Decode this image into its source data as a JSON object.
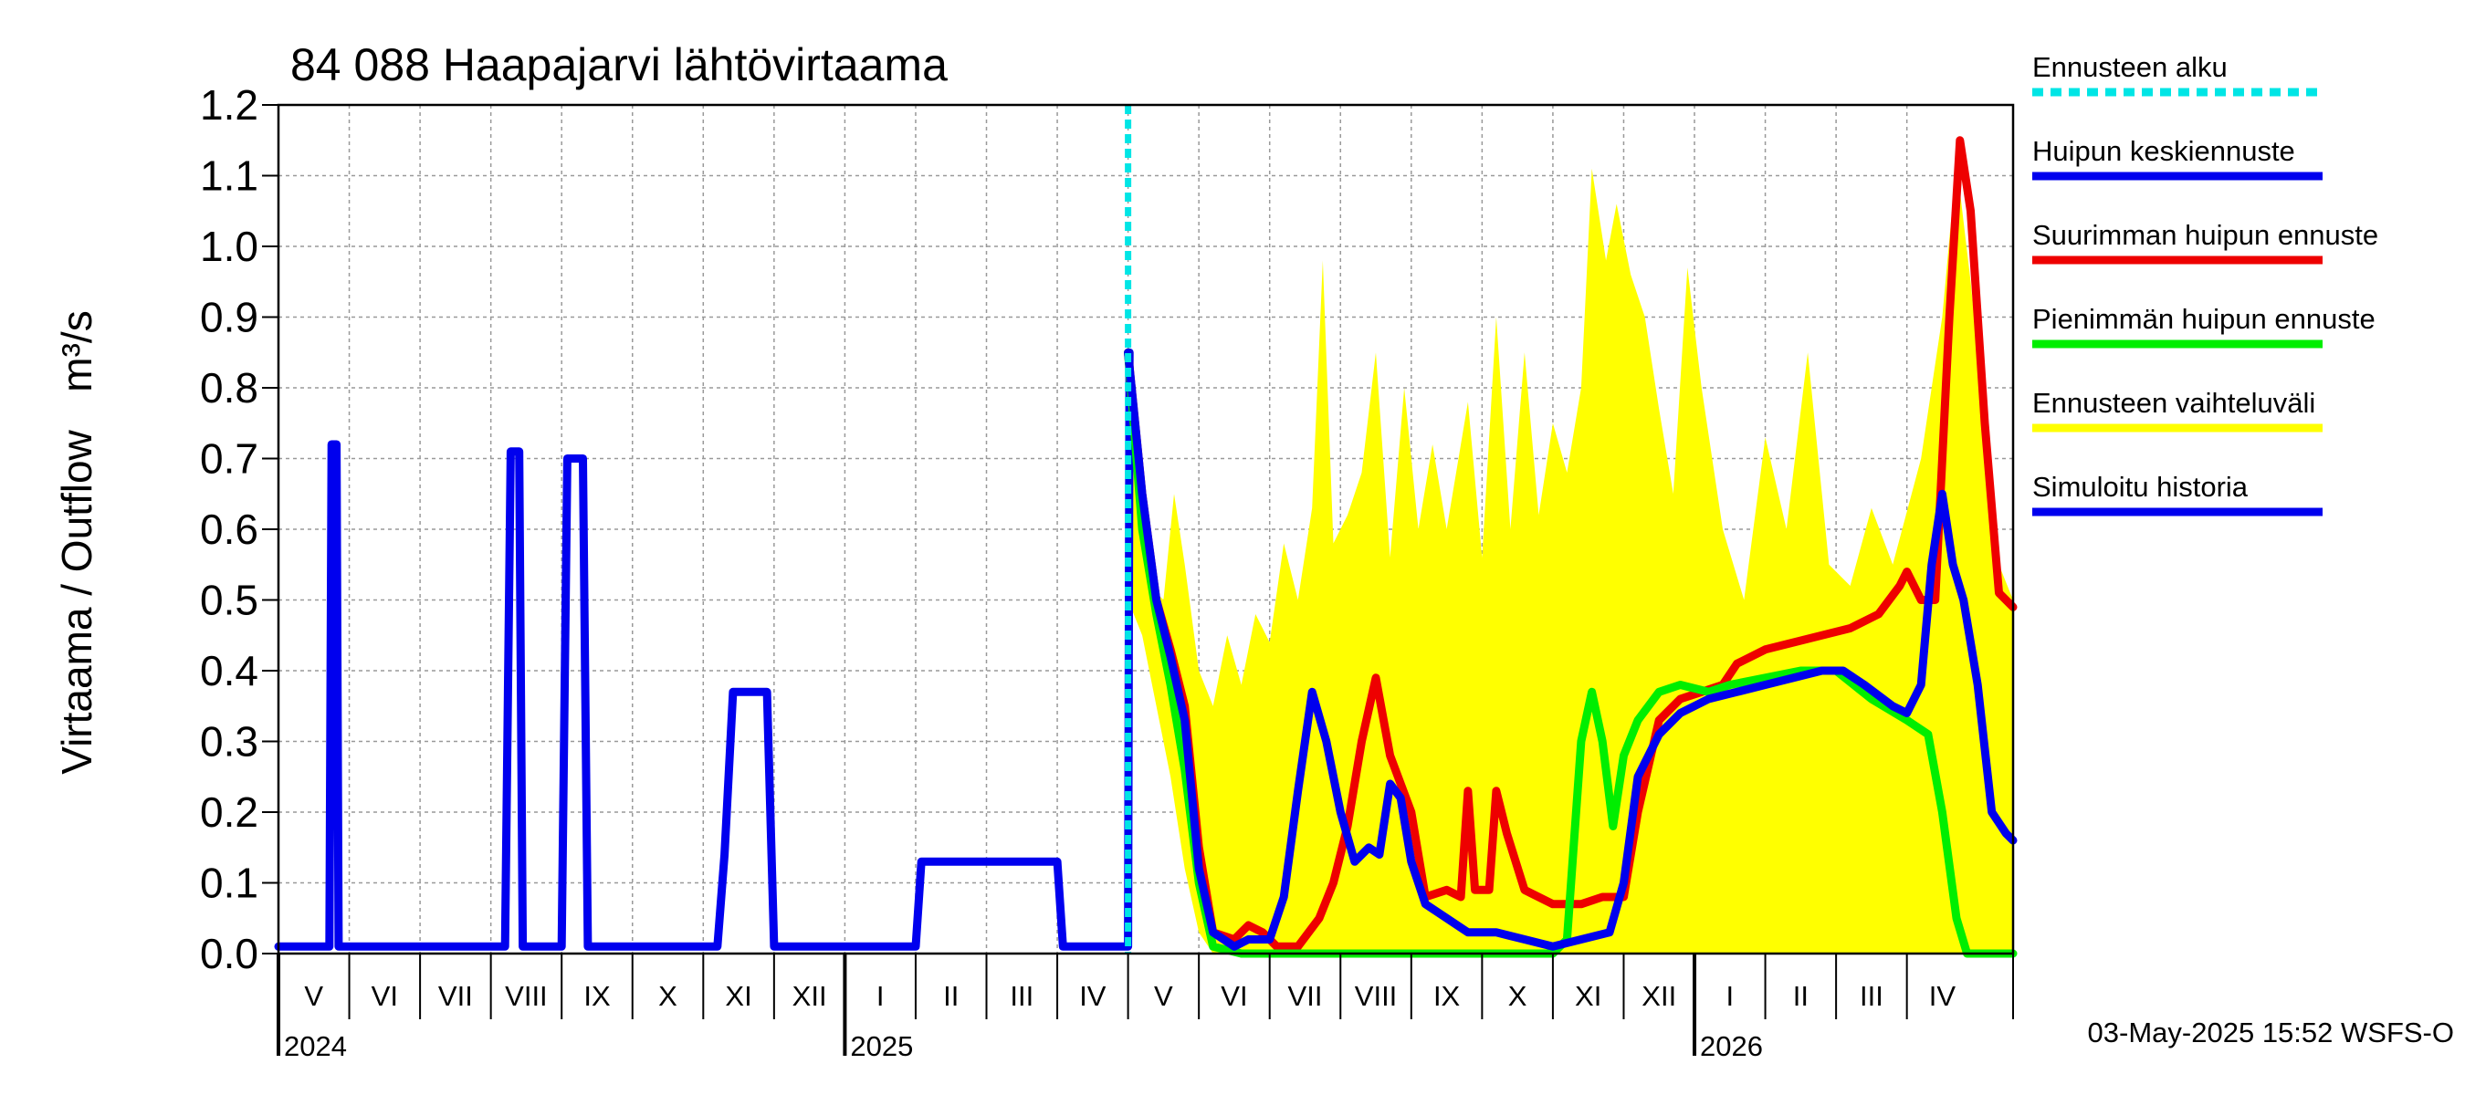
{
  "chart_data": {
    "type": "line",
    "title": "84 088 Haapajarvi lähtövirtaama",
    "ylabel_fi": "Virtaama / Outflow",
    "yunit": "m³/s",
    "ylim": [
      0.0,
      1.2
    ],
    "yticks": [
      "0.0",
      "0.1",
      "0.2",
      "0.3",
      "0.4",
      "0.5",
      "0.6",
      "0.7",
      "0.8",
      "0.9",
      "1.0",
      "1.1",
      "1.2"
    ],
    "xlim": [
      0,
      24.5
    ],
    "months": [
      {
        "label": "V",
        "x": 0
      },
      {
        "label": "VI",
        "x": 1
      },
      {
        "label": "VII",
        "x": 2
      },
      {
        "label": "VIII",
        "x": 3
      },
      {
        "label": "IX",
        "x": 4
      },
      {
        "label": "X",
        "x": 5
      },
      {
        "label": "XI",
        "x": 6
      },
      {
        "label": "XII",
        "x": 7
      },
      {
        "label": "I",
        "x": 8
      },
      {
        "label": "II",
        "x": 9
      },
      {
        "label": "III",
        "x": 10
      },
      {
        "label": "IV",
        "x": 11
      },
      {
        "label": "V",
        "x": 12
      },
      {
        "label": "VI",
        "x": 13
      },
      {
        "label": "VII",
        "x": 14
      },
      {
        "label": "VIII",
        "x": 15
      },
      {
        "label": "IX",
        "x": 16
      },
      {
        "label": "X",
        "x": 17
      },
      {
        "label": "XI",
        "x": 18
      },
      {
        "label": "XII",
        "x": 19
      },
      {
        "label": "I",
        "x": 20
      },
      {
        "label": "II",
        "x": 21
      },
      {
        "label": "III",
        "x": 22
      },
      {
        "label": "IV",
        "x": 23
      }
    ],
    "years": [
      {
        "label": "2024",
        "x": 0
      },
      {
        "label": "2025",
        "x": 8
      },
      {
        "label": "2026",
        "x": 20
      }
    ],
    "forecast_start_x": 12.0,
    "footer": "03-May-2025 15:52 WSFS-O",
    "legend": [
      {
        "label": "Ennusteen alku",
        "color": "#00e5e5",
        "style": "dashed"
      },
      {
        "label": "Huipun keskiennuste",
        "color": "#0000ee",
        "style": "solid"
      },
      {
        "label": "Suurimman huipun ennuste",
        "color": "#ee0000",
        "style": "solid"
      },
      {
        "label": "Pienimmän huipun ennuste",
        "color": "#00ee00",
        "style": "solid"
      },
      {
        "label": "Ennusteen vaihteluväli",
        "color": "#ffff00",
        "style": "solid"
      },
      {
        "label": "Simuloitu historia",
        "color": "#0000ee",
        "style": "solid"
      }
    ],
    "band": {
      "name": "Ennusteen vaihteluväli",
      "color": "#ffff00",
      "upper": [
        [
          12.0,
          0.85
        ],
        [
          12.1,
          0.72
        ],
        [
          12.3,
          0.52
        ],
        [
          12.5,
          0.5
        ],
        [
          12.65,
          0.65
        ],
        [
          12.8,
          0.55
        ],
        [
          13.0,
          0.4
        ],
        [
          13.2,
          0.35
        ],
        [
          13.4,
          0.45
        ],
        [
          13.6,
          0.38
        ],
        [
          13.8,
          0.48
        ],
        [
          14.0,
          0.44
        ],
        [
          14.2,
          0.58
        ],
        [
          14.4,
          0.5
        ],
        [
          14.6,
          0.63
        ],
        [
          14.75,
          0.98
        ],
        [
          14.9,
          0.58
        ],
        [
          15.1,
          0.62
        ],
        [
          15.3,
          0.68
        ],
        [
          15.5,
          0.85
        ],
        [
          15.7,
          0.56
        ],
        [
          15.9,
          0.8
        ],
        [
          16.1,
          0.6
        ],
        [
          16.3,
          0.72
        ],
        [
          16.5,
          0.6
        ],
        [
          16.8,
          0.78
        ],
        [
          17.0,
          0.56
        ],
        [
          17.2,
          0.9
        ],
        [
          17.4,
          0.6
        ],
        [
          17.6,
          0.85
        ],
        [
          17.8,
          0.62
        ],
        [
          18.0,
          0.75
        ],
        [
          18.2,
          0.68
        ],
        [
          18.4,
          0.8
        ],
        [
          18.55,
          1.11
        ],
        [
          18.75,
          0.98
        ],
        [
          18.9,
          1.06
        ],
        [
          19.1,
          0.96
        ],
        [
          19.3,
          0.9
        ],
        [
          19.5,
          0.77
        ],
        [
          19.7,
          0.65
        ],
        [
          19.9,
          0.97
        ],
        [
          20.1,
          0.8
        ],
        [
          20.4,
          0.6
        ],
        [
          20.7,
          0.5
        ],
        [
          21.0,
          0.73
        ],
        [
          21.3,
          0.6
        ],
        [
          21.6,
          0.85
        ],
        [
          21.9,
          0.55
        ],
        [
          22.2,
          0.52
        ],
        [
          22.5,
          0.63
        ],
        [
          22.8,
          0.55
        ],
        [
          23.2,
          0.7
        ],
        [
          23.5,
          0.9
        ],
        [
          23.7,
          1.12
        ],
        [
          23.9,
          0.95
        ],
        [
          24.1,
          0.75
        ],
        [
          24.3,
          0.55
        ],
        [
          24.5,
          0.5
        ]
      ],
      "lower": [
        [
          24.5,
          0.0
        ],
        [
          24.0,
          0.0
        ],
        [
          23.5,
          0.0
        ],
        [
          23.0,
          0.0
        ],
        [
          22.0,
          0.0
        ],
        [
          21.0,
          0.0
        ],
        [
          20.0,
          0.0
        ],
        [
          19.0,
          0.0
        ],
        [
          18.0,
          0.0
        ],
        [
          17.0,
          0.0
        ],
        [
          16.0,
          0.0
        ],
        [
          15.0,
          0.0
        ],
        [
          14.0,
          0.0
        ],
        [
          13.2,
          0.0
        ],
        [
          13.0,
          0.03
        ],
        [
          12.8,
          0.12
        ],
        [
          12.6,
          0.25
        ],
        [
          12.4,
          0.35
        ],
        [
          12.2,
          0.45
        ],
        [
          12.0,
          0.5
        ]
      ]
    },
    "series": [
      {
        "name": "Simuloitu historia",
        "color": "#0000ee",
        "values": [
          [
            0.0,
            0.01
          ],
          [
            0.72,
            0.01
          ],
          [
            0.75,
            0.72
          ],
          [
            0.82,
            0.72
          ],
          [
            0.85,
            0.01
          ],
          [
            3.2,
            0.01
          ],
          [
            3.28,
            0.71
          ],
          [
            3.4,
            0.71
          ],
          [
            3.45,
            0.01
          ],
          [
            4.0,
            0.01
          ],
          [
            4.08,
            0.7
          ],
          [
            4.3,
            0.7
          ],
          [
            4.37,
            0.01
          ],
          [
            6.2,
            0.01
          ],
          [
            6.3,
            0.14
          ],
          [
            6.42,
            0.37
          ],
          [
            6.9,
            0.37
          ],
          [
            7.0,
            0.01
          ],
          [
            9.0,
            0.01
          ],
          [
            9.08,
            0.13
          ],
          [
            11.0,
            0.13
          ],
          [
            11.08,
            0.01
          ],
          [
            12.0,
            0.01
          ],
          [
            12.02,
            0.85
          ]
        ]
      },
      {
        "name": "Suurimman huipun ennuste",
        "color": "#ee0000",
        "values": [
          [
            12.0,
            0.85
          ],
          [
            12.2,
            0.65
          ],
          [
            12.4,
            0.5
          ],
          [
            12.6,
            0.43
          ],
          [
            12.8,
            0.35
          ],
          [
            13.0,
            0.15
          ],
          [
            13.2,
            0.03
          ],
          [
            13.5,
            0.02
          ],
          [
            13.7,
            0.04
          ],
          [
            13.9,
            0.03
          ],
          [
            14.1,
            0.01
          ],
          [
            14.4,
            0.01
          ],
          [
            14.7,
            0.05
          ],
          [
            14.9,
            0.1
          ],
          [
            15.1,
            0.18
          ],
          [
            15.3,
            0.3
          ],
          [
            15.5,
            0.39
          ],
          [
            15.7,
            0.28
          ],
          [
            16.0,
            0.2
          ],
          [
            16.2,
            0.08
          ],
          [
            16.5,
            0.09
          ],
          [
            16.7,
            0.08
          ],
          [
            16.8,
            0.23
          ],
          [
            16.9,
            0.09
          ],
          [
            17.1,
            0.09
          ],
          [
            17.2,
            0.23
          ],
          [
            17.35,
            0.17
          ],
          [
            17.6,
            0.09
          ],
          [
            18.0,
            0.07
          ],
          [
            18.4,
            0.07
          ],
          [
            18.7,
            0.08
          ],
          [
            19.0,
            0.08
          ],
          [
            19.2,
            0.2
          ],
          [
            19.5,
            0.33
          ],
          [
            19.8,
            0.36
          ],
          [
            20.1,
            0.37
          ],
          [
            20.4,
            0.38
          ],
          [
            20.6,
            0.41
          ],
          [
            21.0,
            0.43
          ],
          [
            21.4,
            0.44
          ],
          [
            21.8,
            0.45
          ],
          [
            22.2,
            0.46
          ],
          [
            22.6,
            0.48
          ],
          [
            22.9,
            0.52
          ],
          [
            23.0,
            0.54
          ],
          [
            23.2,
            0.5
          ],
          [
            23.4,
            0.5
          ],
          [
            23.6,
            0.9
          ],
          [
            23.75,
            1.15
          ],
          [
            23.9,
            1.05
          ],
          [
            24.1,
            0.75
          ],
          [
            24.3,
            0.51
          ],
          [
            24.5,
            0.49
          ]
        ]
      },
      {
        "name": "Pienimmän huipun ennuste",
        "color": "#00ee00",
        "values": [
          [
            12.0,
            0.85
          ],
          [
            12.2,
            0.6
          ],
          [
            12.4,
            0.48
          ],
          [
            12.6,
            0.38
          ],
          [
            12.8,
            0.26
          ],
          [
            13.0,
            0.1
          ],
          [
            13.2,
            0.01
          ],
          [
            13.6,
            0.0
          ],
          [
            14.0,
            0.0
          ],
          [
            15.0,
            0.0
          ],
          [
            16.0,
            0.0
          ],
          [
            17.0,
            0.0
          ],
          [
            18.0,
            0.0
          ],
          [
            18.2,
            0.02
          ],
          [
            18.4,
            0.3
          ],
          [
            18.55,
            0.37
          ],
          [
            18.7,
            0.3
          ],
          [
            18.85,
            0.18
          ],
          [
            19.0,
            0.28
          ],
          [
            19.2,
            0.33
          ],
          [
            19.5,
            0.37
          ],
          [
            19.8,
            0.38
          ],
          [
            20.2,
            0.37
          ],
          [
            20.5,
            0.38
          ],
          [
            21.0,
            0.39
          ],
          [
            21.5,
            0.4
          ],
          [
            22.0,
            0.4
          ],
          [
            22.5,
            0.36
          ],
          [
            23.0,
            0.33
          ],
          [
            23.3,
            0.31
          ],
          [
            23.5,
            0.2
          ],
          [
            23.7,
            0.05
          ],
          [
            23.85,
            0.0
          ],
          [
            24.5,
            0.0
          ]
        ]
      },
      {
        "name": "Huipun keskiennuste",
        "color": "#0000ee",
        "values": [
          [
            12.0,
            0.85
          ],
          [
            12.2,
            0.65
          ],
          [
            12.4,
            0.5
          ],
          [
            12.6,
            0.42
          ],
          [
            12.8,
            0.33
          ],
          [
            13.0,
            0.12
          ],
          [
            13.2,
            0.03
          ],
          [
            13.5,
            0.01
          ],
          [
            13.7,
            0.02
          ],
          [
            14.0,
            0.02
          ],
          [
            14.2,
            0.08
          ],
          [
            14.4,
            0.23
          ],
          [
            14.6,
            0.37
          ],
          [
            14.8,
            0.3
          ],
          [
            15.0,
            0.2
          ],
          [
            15.2,
            0.13
          ],
          [
            15.4,
            0.15
          ],
          [
            15.55,
            0.14
          ],
          [
            15.7,
            0.24
          ],
          [
            15.85,
            0.22
          ],
          [
            16.0,
            0.13
          ],
          [
            16.2,
            0.07
          ],
          [
            16.5,
            0.05
          ],
          [
            16.8,
            0.03
          ],
          [
            17.2,
            0.03
          ],
          [
            17.6,
            0.02
          ],
          [
            18.0,
            0.01
          ],
          [
            18.4,
            0.02
          ],
          [
            18.8,
            0.03
          ],
          [
            19.0,
            0.1
          ],
          [
            19.2,
            0.25
          ],
          [
            19.5,
            0.31
          ],
          [
            19.8,
            0.34
          ],
          [
            20.2,
            0.36
          ],
          [
            20.6,
            0.37
          ],
          [
            21.0,
            0.38
          ],
          [
            21.4,
            0.39
          ],
          [
            21.8,
            0.4
          ],
          [
            22.1,
            0.4
          ],
          [
            22.4,
            0.38
          ],
          [
            22.8,
            0.35
          ],
          [
            23.0,
            0.34
          ],
          [
            23.2,
            0.38
          ],
          [
            23.35,
            0.55
          ],
          [
            23.5,
            0.65
          ],
          [
            23.65,
            0.55
          ],
          [
            23.8,
            0.5
          ],
          [
            24.0,
            0.38
          ],
          [
            24.2,
            0.2
          ],
          [
            24.4,
            0.17
          ],
          [
            24.5,
            0.16
          ]
        ]
      }
    ]
  }
}
